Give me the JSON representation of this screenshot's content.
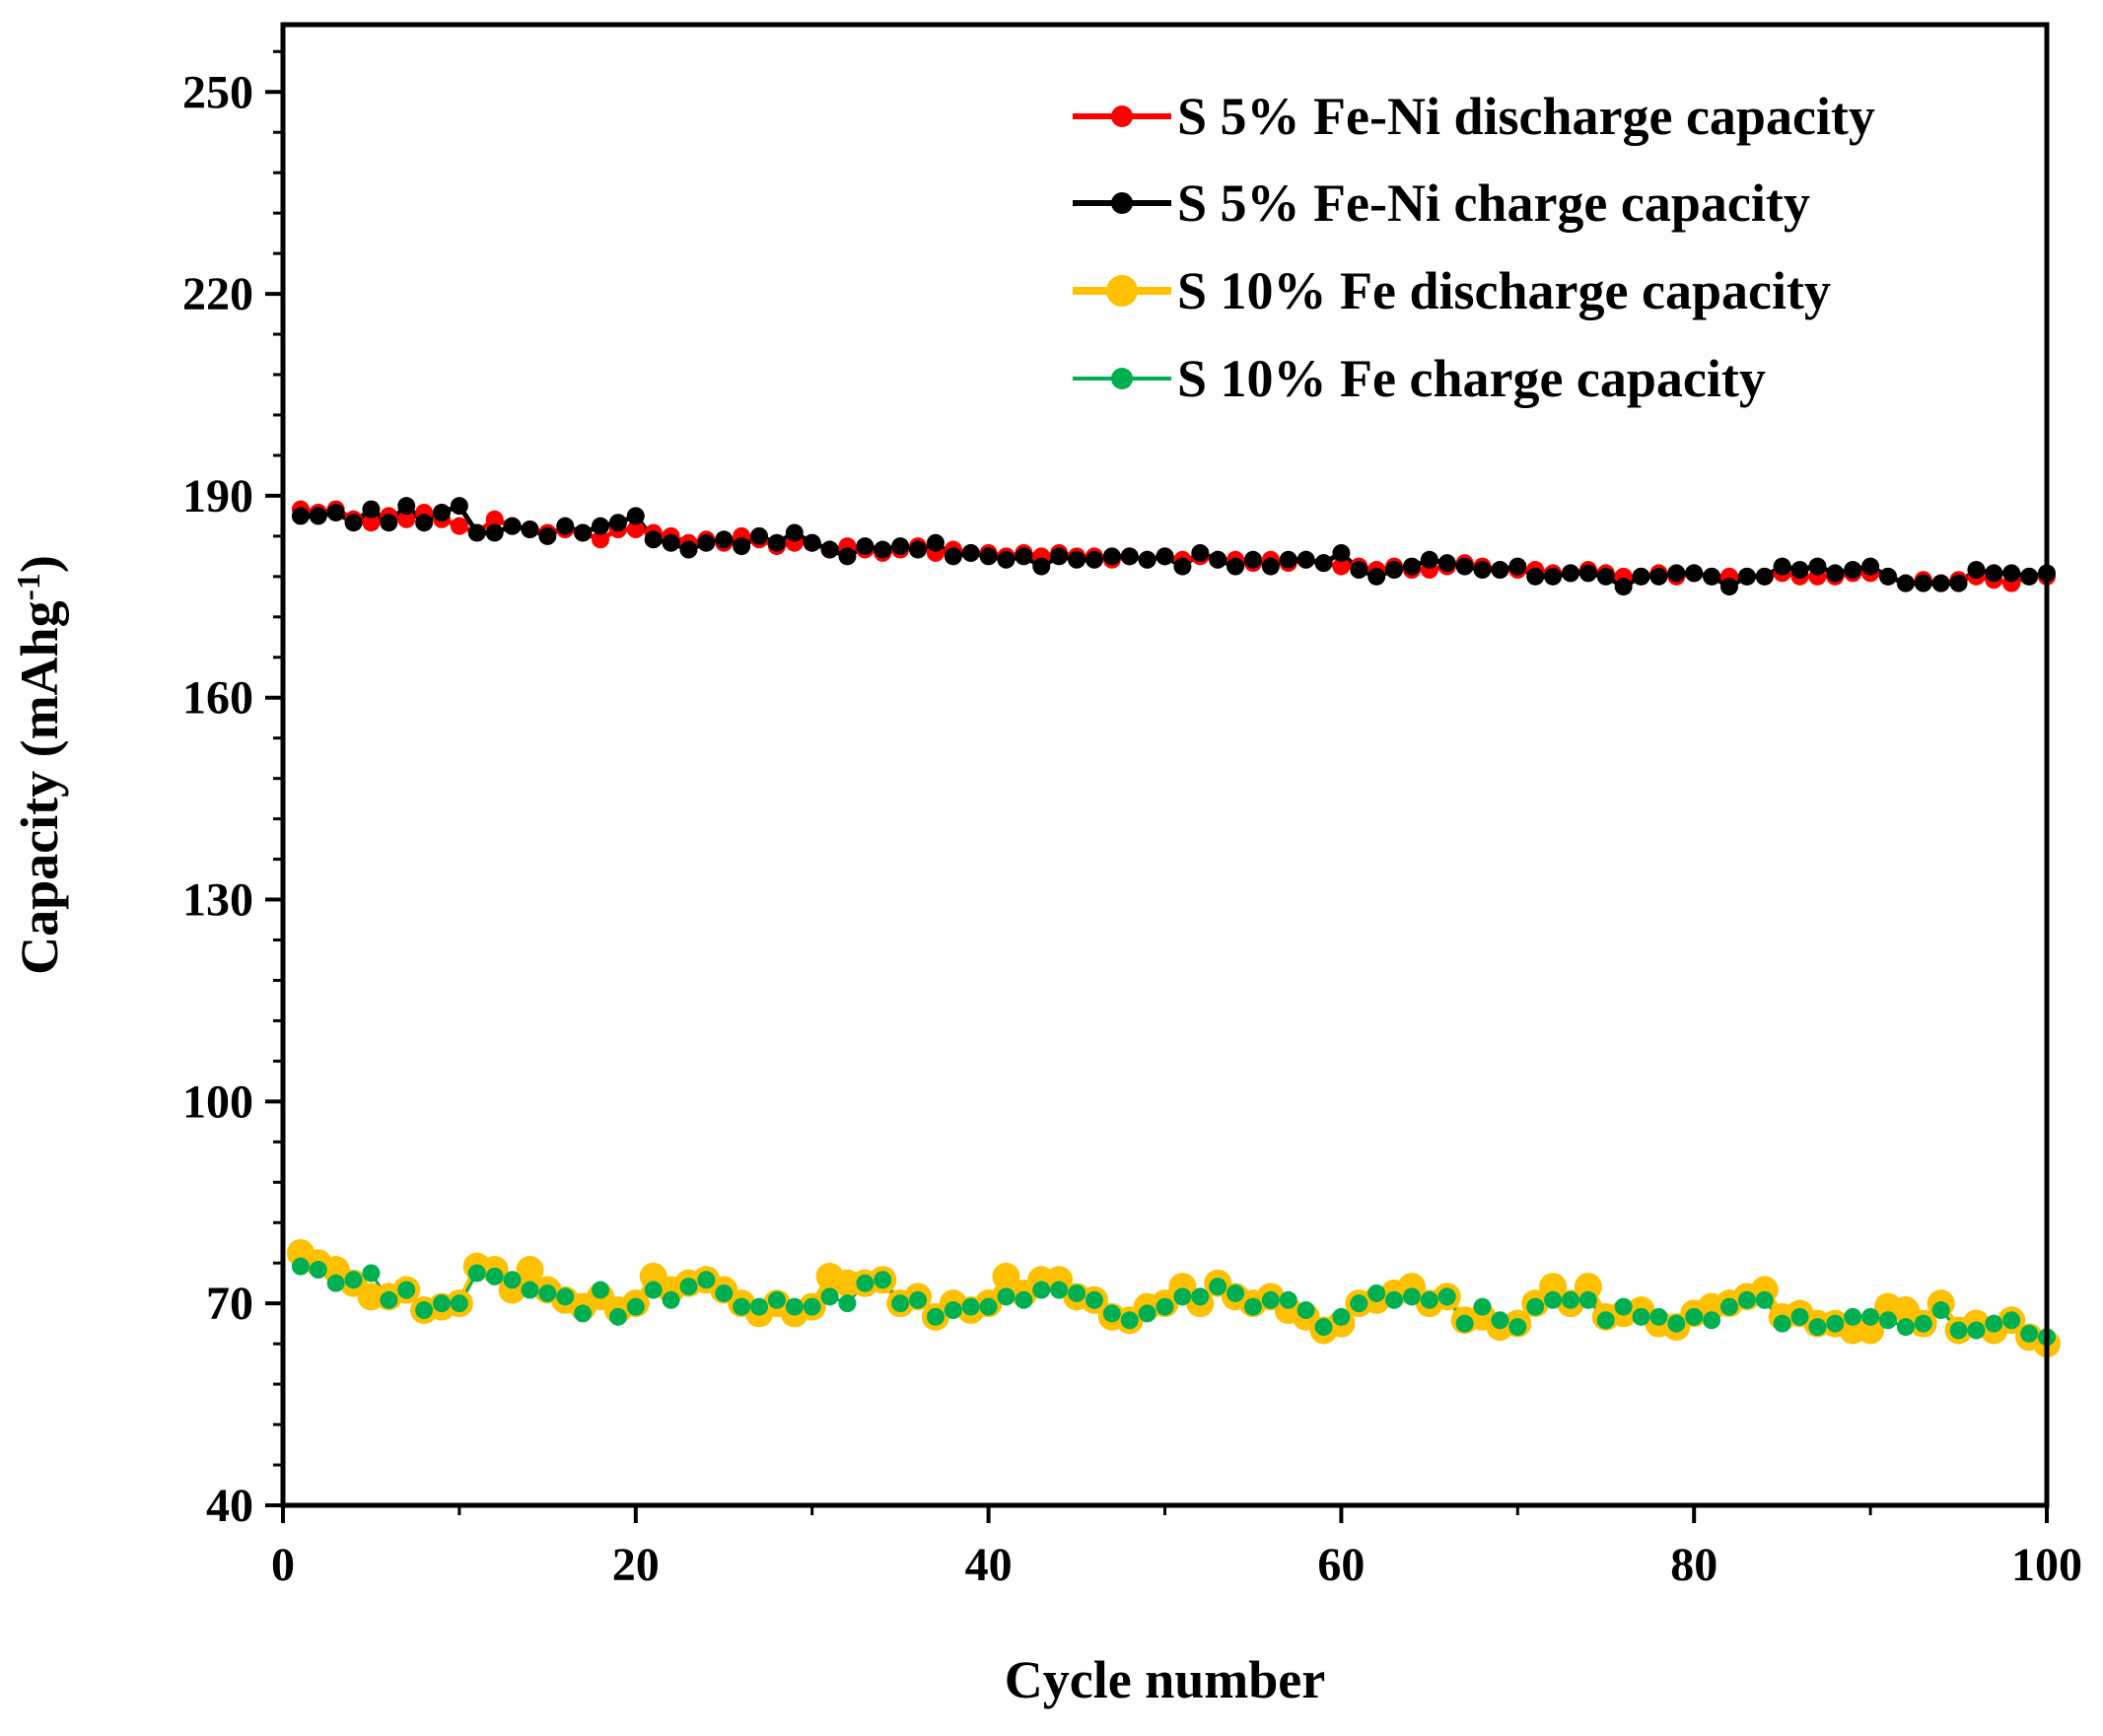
{
  "chart_data": {
    "type": "line",
    "title": "",
    "xlabel": "Cycle number",
    "ylabel_prefix": "Capacity (mAhg",
    "ylabel_superscript": "-1",
    "ylabel_suffix": ")",
    "xlim": [
      0,
      100
    ],
    "ylim": [
      40,
      260
    ],
    "xticks": [
      0,
      20,
      40,
      60,
      80,
      100
    ],
    "yticks": [
      40,
      70,
      100,
      130,
      160,
      190,
      220,
      250
    ],
    "grid": false,
    "legend_position": "top-right",
    "x": [
      1,
      2,
      3,
      4,
      5,
      6,
      7,
      8,
      9,
      10,
      11,
      12,
      13,
      14,
      15,
      16,
      17,
      18,
      19,
      20,
      21,
      22,
      23,
      24,
      25,
      26,
      27,
      28,
      29,
      30,
      31,
      32,
      33,
      34,
      35,
      36,
      37,
      38,
      39,
      40,
      41,
      42,
      43,
      44,
      45,
      46,
      47,
      48,
      49,
      50,
      51,
      52,
      53,
      54,
      55,
      56,
      57,
      58,
      59,
      60,
      61,
      62,
      63,
      64,
      65,
      66,
      67,
      68,
      69,
      70,
      71,
      72,
      73,
      74,
      75,
      76,
      77,
      78,
      79,
      80,
      81,
      82,
      83,
      84,
      85,
      86,
      87,
      88,
      89,
      90,
      91,
      92,
      93,
      94,
      95,
      96,
      97,
      98,
      99,
      100
    ],
    "series": [
      {
        "name": "S 5% Fe-Ni discharge capacity",
        "color": "#ff0000",
        "marker_size": 9,
        "line_width": 5,
        "values": [
          188,
          187.5,
          188,
          186.5,
          186,
          187,
          186.5,
          187.5,
          186.5,
          185.5,
          184.5,
          186.5,
          185.5,
          185,
          184.5,
          185,
          184.5,
          183.5,
          185,
          185,
          184.5,
          184,
          183,
          183.5,
          183,
          184,
          183.5,
          182.5,
          183,
          183,
          182,
          182.5,
          182,
          181.5,
          182,
          182.5,
          181.5,
          182,
          181.5,
          181.5,
          181,
          181.5,
          181,
          181.5,
          181,
          181,
          180.5,
          181,
          180.5,
          181,
          180.5,
          181,
          180.5,
          180.5,
          180,
          180.5,
          180,
          180.5,
          180,
          179.5,
          179.5,
          179,
          179.5,
          179,
          179,
          179.5,
          180,
          179.5,
          179,
          179,
          179,
          178.5,
          178.5,
          179,
          178.5,
          178,
          178,
          178.5,
          178,
          178.5,
          178,
          178,
          178,
          178,
          178.5,
          178,
          178,
          178,
          178.5,
          178.5,
          178,
          177,
          177.5,
          177,
          177.5,
          178,
          177.5,
          177,
          178,
          178
        ]
      },
      {
        "name": "S 5% Fe-Ni charge capacity",
        "color": "#000000",
        "marker_size": 9,
        "line_width": 5,
        "values": [
          187,
          187,
          187.5,
          186,
          188,
          186,
          188.5,
          186,
          187.5,
          188.5,
          184.5,
          184.5,
          185.5,
          185,
          184,
          185.5,
          184.5,
          185.5,
          186,
          187,
          183.5,
          183,
          182,
          183,
          183.5,
          182.5,
          184,
          183,
          184.5,
          183,
          182,
          181,
          182.5,
          182,
          182.5,
          182,
          183,
          181,
          181.5,
          181,
          180.5,
          181,
          179.5,
          181,
          180.5,
          180.5,
          181,
          181,
          180.5,
          181,
          179.5,
          181.5,
          180.5,
          179.5,
          180.5,
          179.5,
          180.5,
          180.5,
          180,
          181.5,
          179,
          178,
          179,
          179.5,
          180.5,
          180,
          179.5,
          179,
          179,
          179.5,
          178,
          178,
          178.5,
          178.5,
          178,
          176.5,
          178,
          178,
          178.5,
          178.5,
          178,
          176.5,
          178,
          178,
          179.5,
          179,
          179.5,
          178.5,
          179,
          179.5,
          178,
          177,
          177,
          177,
          177,
          179,
          178.5,
          178.5,
          178,
          178.5
        ]
      },
      {
        "name": "S 10% Fe discharge capacity",
        "color": "#ffc000",
        "marker_size": 14,
        "line_width": 7,
        "values": [
          77.5,
          76,
          75,
          73,
          71,
          71,
          72,
          69,
          69.5,
          70,
          75.5,
          75,
          72,
          75,
          72,
          70.5,
          69.5,
          71,
          69,
          70,
          74,
          72,
          73,
          73.5,
          72,
          70,
          68.5,
          70,
          68.5,
          69.5,
          74,
          73,
          73,
          73.5,
          70,
          71,
          68,
          70,
          69,
          70,
          74,
          71.5,
          73.5,
          73.5,
          71,
          70.5,
          68,
          67.5,
          69.5,
          70,
          72.5,
          70,
          73,
          71,
          70,
          71,
          69,
          68,
          66,
          67,
          70,
          70.5,
          71.5,
          72.5,
          70,
          71,
          67.5,
          68,
          66.5,
          67,
          70,
          72.5,
          70,
          72.5,
          68,
          68.5,
          69,
          67,
          66.5,
          68.5,
          69.5,
          70,
          71,
          72,
          68,
          68.5,
          67,
          67,
          66,
          66,
          69.5,
          69,
          67,
          70,
          66,
          67,
          66,
          67.5,
          65,
          64
        ]
      },
      {
        "name": "S 10% Fe charge capacity",
        "color": "#00b050",
        "marker_size": 9,
        "line_width": 3,
        "values": [
          75.5,
          75,
          73,
          73.5,
          74.5,
          70.5,
          72,
          69,
          70,
          70,
          74.5,
          74,
          73.5,
          72,
          71.5,
          71,
          68.5,
          72,
          68,
          69.5,
          72,
          70.5,
          72.5,
          73.5,
          71.5,
          69.5,
          69.5,
          70.5,
          69.5,
          69.5,
          71,
          70,
          73,
          73.5,
          70,
          70.5,
          68,
          69,
          69.5,
          69.5,
          71,
          70.5,
          72,
          72,
          71.5,
          70.5,
          68.5,
          67.5,
          68.5,
          69.5,
          71,
          71,
          72.5,
          71.5,
          69.5,
          70.5,
          70.5,
          69,
          66.5,
          68,
          70,
          71.5,
          70.5,
          71,
          70.5,
          71,
          67,
          69.5,
          67.5,
          66.5,
          69.5,
          70.5,
          70.5,
          70.5,
          67.5,
          69.5,
          68,
          68,
          67,
          68,
          67.5,
          69.5,
          70.5,
          70.5,
          67,
          68,
          66.5,
          67,
          68,
          68,
          67.5,
          66.5,
          67,
          69,
          66,
          66,
          67,
          67.5,
          65.5,
          65
        ]
      }
    ]
  }
}
